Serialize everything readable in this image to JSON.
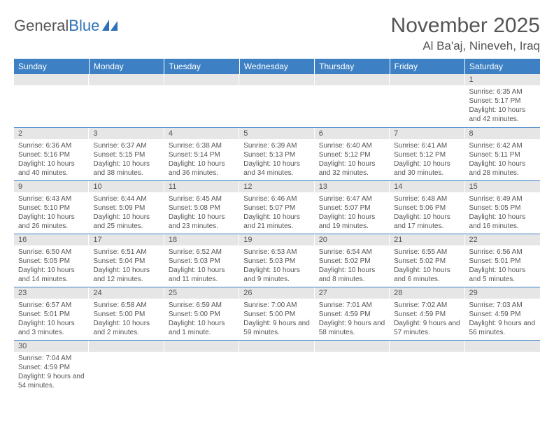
{
  "logo": {
    "text1": "General",
    "text2": "Blue"
  },
  "title": "November 2025",
  "location": "Al Ba'aj, Nineveh, Iraq",
  "colors": {
    "header_bg": "#3d80c4",
    "daynum_bg": "#e6e6e6",
    "border": "#3d80c4",
    "text": "#555555"
  },
  "weekdays": [
    "Sunday",
    "Monday",
    "Tuesday",
    "Wednesday",
    "Thursday",
    "Friday",
    "Saturday"
  ],
  "weeks": [
    [
      {
        "n": "",
        "sr": "",
        "ss": "",
        "dl": ""
      },
      {
        "n": "",
        "sr": "",
        "ss": "",
        "dl": ""
      },
      {
        "n": "",
        "sr": "",
        "ss": "",
        "dl": ""
      },
      {
        "n": "",
        "sr": "",
        "ss": "",
        "dl": ""
      },
      {
        "n": "",
        "sr": "",
        "ss": "",
        "dl": ""
      },
      {
        "n": "",
        "sr": "",
        "ss": "",
        "dl": ""
      },
      {
        "n": "1",
        "sr": "Sunrise: 6:35 AM",
        "ss": "Sunset: 5:17 PM",
        "dl": "Daylight: 10 hours and 42 minutes."
      }
    ],
    [
      {
        "n": "2",
        "sr": "Sunrise: 6:36 AM",
        "ss": "Sunset: 5:16 PM",
        "dl": "Daylight: 10 hours and 40 minutes."
      },
      {
        "n": "3",
        "sr": "Sunrise: 6:37 AM",
        "ss": "Sunset: 5:15 PM",
        "dl": "Daylight: 10 hours and 38 minutes."
      },
      {
        "n": "4",
        "sr": "Sunrise: 6:38 AM",
        "ss": "Sunset: 5:14 PM",
        "dl": "Daylight: 10 hours and 36 minutes."
      },
      {
        "n": "5",
        "sr": "Sunrise: 6:39 AM",
        "ss": "Sunset: 5:13 PM",
        "dl": "Daylight: 10 hours and 34 minutes."
      },
      {
        "n": "6",
        "sr": "Sunrise: 6:40 AM",
        "ss": "Sunset: 5:12 PM",
        "dl": "Daylight: 10 hours and 32 minutes."
      },
      {
        "n": "7",
        "sr": "Sunrise: 6:41 AM",
        "ss": "Sunset: 5:12 PM",
        "dl": "Daylight: 10 hours and 30 minutes."
      },
      {
        "n": "8",
        "sr": "Sunrise: 6:42 AM",
        "ss": "Sunset: 5:11 PM",
        "dl": "Daylight: 10 hours and 28 minutes."
      }
    ],
    [
      {
        "n": "9",
        "sr": "Sunrise: 6:43 AM",
        "ss": "Sunset: 5:10 PM",
        "dl": "Daylight: 10 hours and 26 minutes."
      },
      {
        "n": "10",
        "sr": "Sunrise: 6:44 AM",
        "ss": "Sunset: 5:09 PM",
        "dl": "Daylight: 10 hours and 25 minutes."
      },
      {
        "n": "11",
        "sr": "Sunrise: 6:45 AM",
        "ss": "Sunset: 5:08 PM",
        "dl": "Daylight: 10 hours and 23 minutes."
      },
      {
        "n": "12",
        "sr": "Sunrise: 6:46 AM",
        "ss": "Sunset: 5:07 PM",
        "dl": "Daylight: 10 hours and 21 minutes."
      },
      {
        "n": "13",
        "sr": "Sunrise: 6:47 AM",
        "ss": "Sunset: 5:07 PM",
        "dl": "Daylight: 10 hours and 19 minutes."
      },
      {
        "n": "14",
        "sr": "Sunrise: 6:48 AM",
        "ss": "Sunset: 5:06 PM",
        "dl": "Daylight: 10 hours and 17 minutes."
      },
      {
        "n": "15",
        "sr": "Sunrise: 6:49 AM",
        "ss": "Sunset: 5:05 PM",
        "dl": "Daylight: 10 hours and 16 minutes."
      }
    ],
    [
      {
        "n": "16",
        "sr": "Sunrise: 6:50 AM",
        "ss": "Sunset: 5:05 PM",
        "dl": "Daylight: 10 hours and 14 minutes."
      },
      {
        "n": "17",
        "sr": "Sunrise: 6:51 AM",
        "ss": "Sunset: 5:04 PM",
        "dl": "Daylight: 10 hours and 12 minutes."
      },
      {
        "n": "18",
        "sr": "Sunrise: 6:52 AM",
        "ss": "Sunset: 5:03 PM",
        "dl": "Daylight: 10 hours and 11 minutes."
      },
      {
        "n": "19",
        "sr": "Sunrise: 6:53 AM",
        "ss": "Sunset: 5:03 PM",
        "dl": "Daylight: 10 hours and 9 minutes."
      },
      {
        "n": "20",
        "sr": "Sunrise: 6:54 AM",
        "ss": "Sunset: 5:02 PM",
        "dl": "Daylight: 10 hours and 8 minutes."
      },
      {
        "n": "21",
        "sr": "Sunrise: 6:55 AM",
        "ss": "Sunset: 5:02 PM",
        "dl": "Daylight: 10 hours and 6 minutes."
      },
      {
        "n": "22",
        "sr": "Sunrise: 6:56 AM",
        "ss": "Sunset: 5:01 PM",
        "dl": "Daylight: 10 hours and 5 minutes."
      }
    ],
    [
      {
        "n": "23",
        "sr": "Sunrise: 6:57 AM",
        "ss": "Sunset: 5:01 PM",
        "dl": "Daylight: 10 hours and 3 minutes."
      },
      {
        "n": "24",
        "sr": "Sunrise: 6:58 AM",
        "ss": "Sunset: 5:00 PM",
        "dl": "Daylight: 10 hours and 2 minutes."
      },
      {
        "n": "25",
        "sr": "Sunrise: 6:59 AM",
        "ss": "Sunset: 5:00 PM",
        "dl": "Daylight: 10 hours and 1 minute."
      },
      {
        "n": "26",
        "sr": "Sunrise: 7:00 AM",
        "ss": "Sunset: 5:00 PM",
        "dl": "Daylight: 9 hours and 59 minutes."
      },
      {
        "n": "27",
        "sr": "Sunrise: 7:01 AM",
        "ss": "Sunset: 4:59 PM",
        "dl": "Daylight: 9 hours and 58 minutes."
      },
      {
        "n": "28",
        "sr": "Sunrise: 7:02 AM",
        "ss": "Sunset: 4:59 PM",
        "dl": "Daylight: 9 hours and 57 minutes."
      },
      {
        "n": "29",
        "sr": "Sunrise: 7:03 AM",
        "ss": "Sunset: 4:59 PM",
        "dl": "Daylight: 9 hours and 56 minutes."
      }
    ],
    [
      {
        "n": "30",
        "sr": "Sunrise: 7:04 AM",
        "ss": "Sunset: 4:59 PM",
        "dl": "Daylight: 9 hours and 54 minutes."
      },
      {
        "n": "",
        "sr": "",
        "ss": "",
        "dl": ""
      },
      {
        "n": "",
        "sr": "",
        "ss": "",
        "dl": ""
      },
      {
        "n": "",
        "sr": "",
        "ss": "",
        "dl": ""
      },
      {
        "n": "",
        "sr": "",
        "ss": "",
        "dl": ""
      },
      {
        "n": "",
        "sr": "",
        "ss": "",
        "dl": ""
      },
      {
        "n": "",
        "sr": "",
        "ss": "",
        "dl": ""
      }
    ]
  ]
}
